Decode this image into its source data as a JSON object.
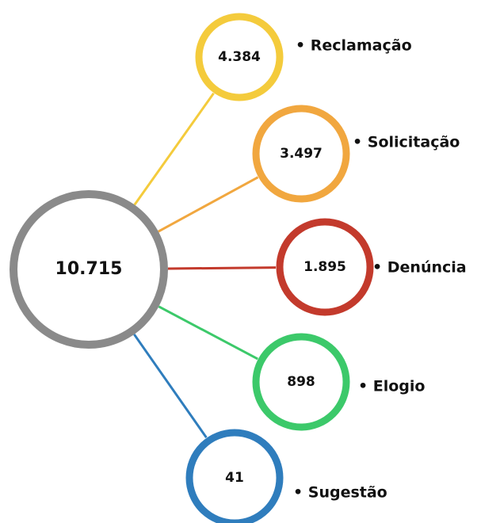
{
  "center": {
    "value": "10.715",
    "color": "#8a8a8a"
  },
  "nodes": [
    {
      "value": "4.384",
      "label": "• Reclamação",
      "color": "#f4cb3c"
    },
    {
      "value": "3.497",
      "label": "• Solicitação",
      "color": "#f1a73f"
    },
    {
      "value": "1.895",
      "label": "• Denúncia",
      "color": "#c33a2c"
    },
    {
      "value": "898",
      "label": "• Elogio",
      "color": "#3cc96a"
    },
    {
      "value": "41",
      "label": "• Sugestão",
      "color": "#2f7dbd"
    }
  ]
}
